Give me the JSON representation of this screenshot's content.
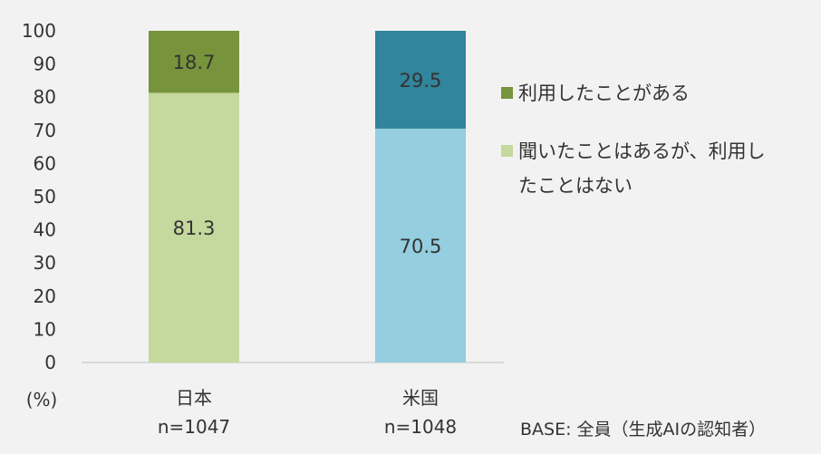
{
  "chart_data": {
    "type": "bar",
    "stacked": true,
    "categories": [
      "日本",
      "米国"
    ],
    "sample_sizes": [
      "n=1047",
      "n=1048"
    ],
    "series": [
      {
        "name": "聞いたことはあるが、利用したことはない",
        "values": [
          81.3,
          70.5
        ],
        "colors": [
          "#c5d89e",
          "#94cedf"
        ]
      },
      {
        "name": "利用したことがある",
        "values": [
          18.7,
          29.5
        ],
        "colors": [
          "#77933c",
          "#31859c"
        ]
      }
    ],
    "ylim": [
      0,
      100
    ],
    "yticks": [
      0,
      10,
      20,
      30,
      40,
      50,
      60,
      70,
      80,
      90,
      100
    ],
    "ylabel": "(%)",
    "grid": false,
    "legend_position": "right",
    "data_label_color": "#333333"
  },
  "legend": [
    {
      "label": "利用したことがある",
      "color": "#77933c"
    },
    {
      "label": "聞いたことはあるが、利用したことはない",
      "color": "#c5d89e"
    }
  ],
  "note": "BASE: 全員（生成AIの認知者）"
}
